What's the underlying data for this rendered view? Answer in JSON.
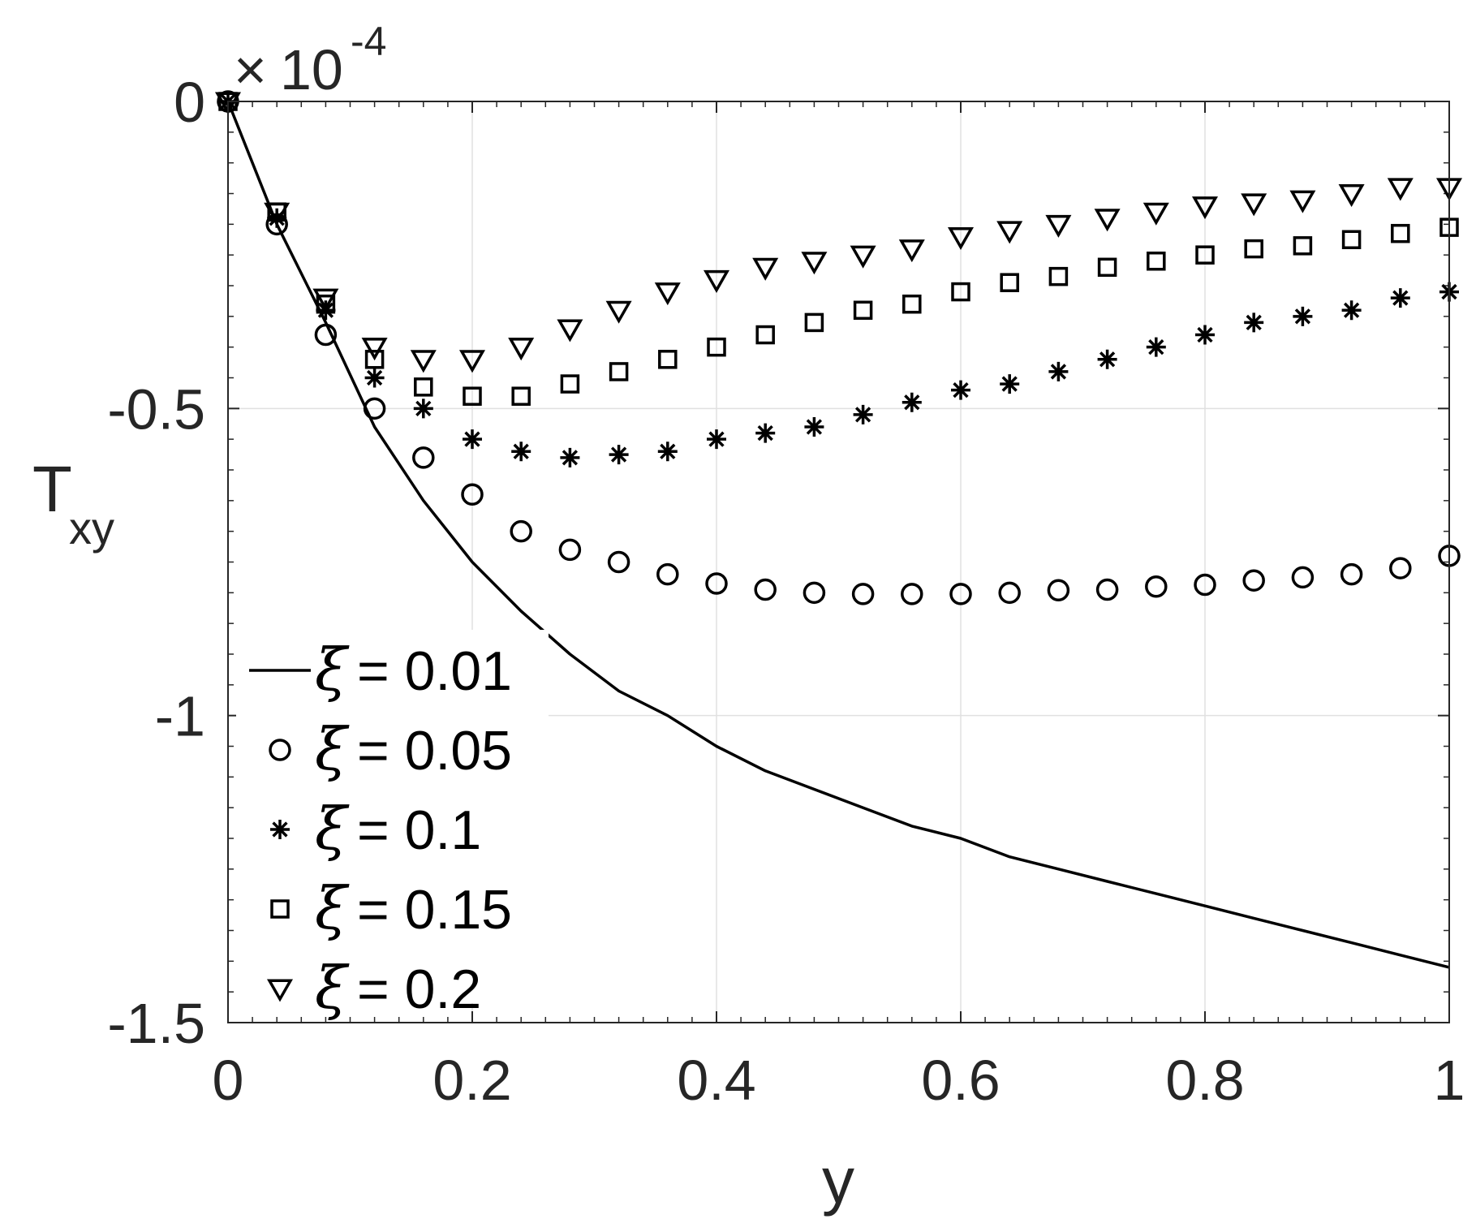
{
  "chart_data": {
    "type": "line",
    "title": "",
    "xlabel": "y",
    "ylabel": "T",
    "ylabel_subscript": "xy",
    "y_multiplier_label": {
      "times": "×",
      "base": "10",
      "exponent": "-4"
    },
    "xlim": [
      0,
      1
    ],
    "ylim": [
      -1.5,
      0
    ],
    "xticks": [
      0,
      0.2,
      0.4,
      0.6,
      0.8,
      1
    ],
    "xtick_labels": [
      "0",
      "0.2",
      "0.4",
      "0.6",
      "0.8",
      "1"
    ],
    "yticks": [
      0,
      -0.5,
      -1,
      -1.5
    ],
    "ytick_labels": [
      "0",
      "-0.5",
      "-1",
      "-1.5"
    ],
    "grid": true,
    "legend_position": "bottom-left",
    "legend_symbol": "ξ",
    "colors": {
      "data": "#000000",
      "axis": "#262626",
      "grid": "#e0e0e0"
    },
    "x": [
      0,
      0.04,
      0.08,
      0.12,
      0.16,
      0.2,
      0.24,
      0.28,
      0.32,
      0.36,
      0.4,
      0.44,
      0.48,
      0.52,
      0.56,
      0.6,
      0.64,
      0.68,
      0.72,
      0.76,
      0.8,
      0.84,
      0.88,
      0.92,
      0.96,
      1
    ],
    "series": [
      {
        "name": "= 0.01",
        "marker": "line",
        "values": [
          0,
          -0.2,
          -0.36,
          -0.53,
          -0.65,
          -0.75,
          -0.83,
          -0.9,
          -0.96,
          -1.0,
          -1.05,
          -1.09,
          -1.12,
          -1.15,
          -1.18,
          -1.2,
          -1.23,
          -1.25,
          -1.27,
          -1.29,
          -1.31,
          -1.33,
          -1.35,
          -1.37,
          -1.39,
          -1.41
        ]
      },
      {
        "name": "= 0.05",
        "marker": "circle",
        "values": [
          0,
          -0.2,
          -0.38,
          -0.5,
          -0.58,
          -0.64,
          -0.7,
          -0.73,
          -0.75,
          -0.77,
          -0.785,
          -0.795,
          -0.8,
          -0.802,
          -0.802,
          -0.802,
          -0.8,
          -0.796,
          -0.795,
          -0.79,
          -0.787,
          -0.78,
          -0.775,
          -0.77,
          -0.76,
          -0.74
        ]
      },
      {
        "name": "= 0.1",
        "marker": "star",
        "values": [
          0,
          -0.19,
          -0.34,
          -0.45,
          -0.5,
          -0.55,
          -0.57,
          -0.58,
          -0.575,
          -0.57,
          -0.55,
          -0.54,
          -0.53,
          -0.51,
          -0.49,
          -0.47,
          -0.46,
          -0.44,
          -0.42,
          -0.4,
          -0.38,
          -0.36,
          -0.35,
          -0.34,
          -0.32,
          -0.31
        ]
      },
      {
        "name": "= 0.15",
        "marker": "square",
        "values": [
          0,
          -0.18,
          -0.33,
          -0.42,
          -0.465,
          -0.48,
          -0.48,
          -0.46,
          -0.44,
          -0.42,
          -0.4,
          -0.38,
          -0.36,
          -0.34,
          -0.33,
          -0.31,
          -0.295,
          -0.285,
          -0.27,
          -0.26,
          -0.25,
          -0.24,
          -0.235,
          -0.225,
          -0.215,
          -0.205
        ]
      },
      {
        "name": "= 0.2",
        "marker": "triangle-down",
        "values": [
          0,
          -0.18,
          -0.32,
          -0.4,
          -0.42,
          -0.42,
          -0.4,
          -0.37,
          -0.34,
          -0.31,
          -0.29,
          -0.27,
          -0.26,
          -0.25,
          -0.24,
          -0.22,
          -0.21,
          -0.2,
          -0.19,
          -0.18,
          -0.17,
          -0.165,
          -0.16,
          -0.15,
          -0.14,
          -0.14
        ]
      }
    ]
  }
}
